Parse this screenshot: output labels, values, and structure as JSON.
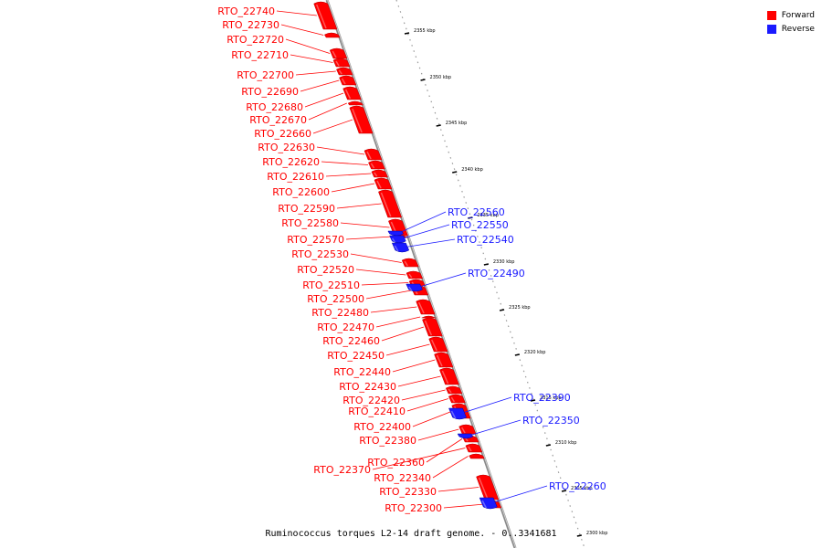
{
  "legend": {
    "forward_label": "Forward",
    "reverse_label": "Reverse",
    "forward_color": "#ff0000",
    "reverse_color": "#1a1aff"
  },
  "caption": "Ruminococcus torques L2-14 draft genome. - 0..3341681",
  "ticks": [
    "2355 kbp",
    "2350 kbp",
    "2345 kbp",
    "2340 kbp",
    "2335 kbp",
    "2330 kbp",
    "2325 kbp",
    "2320 kbp",
    "2315 kbp",
    "2310 kbp",
    "2305 kbp",
    "2300 kbp"
  ],
  "genes": [
    {
      "name": "RTO_22740",
      "strand": "forward"
    },
    {
      "name": "RTO_22730",
      "strand": "forward"
    },
    {
      "name": "RTO_22720",
      "strand": "forward"
    },
    {
      "name": "RTO_22710",
      "strand": "forward"
    },
    {
      "name": "RTO_22700",
      "strand": "forward"
    },
    {
      "name": "RTO_22690",
      "strand": "forward"
    },
    {
      "name": "RTO_22680",
      "strand": "forward"
    },
    {
      "name": "RTO_22670",
      "strand": "forward"
    },
    {
      "name": "RTO_22660",
      "strand": "forward"
    },
    {
      "name": "RTO_22630",
      "strand": "forward"
    },
    {
      "name": "RTO_22620",
      "strand": "forward"
    },
    {
      "name": "RTO_22610",
      "strand": "forward"
    },
    {
      "name": "RTO_22600",
      "strand": "forward"
    },
    {
      "name": "RTO_22590",
      "strand": "forward"
    },
    {
      "name": "RTO_22580",
      "strand": "forward"
    },
    {
      "name": "RTO_22570",
      "strand": "forward"
    },
    {
      "name": "RTO_22530",
      "strand": "forward"
    },
    {
      "name": "RTO_22520",
      "strand": "forward"
    },
    {
      "name": "RTO_22510",
      "strand": "forward"
    },
    {
      "name": "RTO_22500",
      "strand": "forward"
    },
    {
      "name": "RTO_22480",
      "strand": "forward"
    },
    {
      "name": "RTO_22470",
      "strand": "forward"
    },
    {
      "name": "RTO_22460",
      "strand": "forward"
    },
    {
      "name": "RTO_22450",
      "strand": "forward"
    },
    {
      "name": "RTO_22440",
      "strand": "forward"
    },
    {
      "name": "RTO_22430",
      "strand": "forward"
    },
    {
      "name": "RTO_22420",
      "strand": "forward"
    },
    {
      "name": "RTO_22410",
      "strand": "forward"
    },
    {
      "name": "RTO_22400",
      "strand": "forward"
    },
    {
      "name": "RTO_22380",
      "strand": "forward"
    },
    {
      "name": "RTO_22360",
      "strand": "forward"
    },
    {
      "name": "RTO_22370",
      "strand": "forward"
    },
    {
      "name": "RTO_22340",
      "strand": "forward"
    },
    {
      "name": "RTO_22330",
      "strand": "forward"
    },
    {
      "name": "RTO_22300",
      "strand": "forward"
    },
    {
      "name": "RTO_22560",
      "strand": "reverse"
    },
    {
      "name": "RTO_22550",
      "strand": "reverse"
    },
    {
      "name": "RTO_22540",
      "strand": "reverse"
    },
    {
      "name": "RTO_22490",
      "strand": "reverse"
    },
    {
      "name": "RTO_22390",
      "strand": "reverse"
    },
    {
      "name": "RTO_22350",
      "strand": "reverse"
    },
    {
      "name": "RTO_22260",
      "strand": "reverse"
    }
  ]
}
